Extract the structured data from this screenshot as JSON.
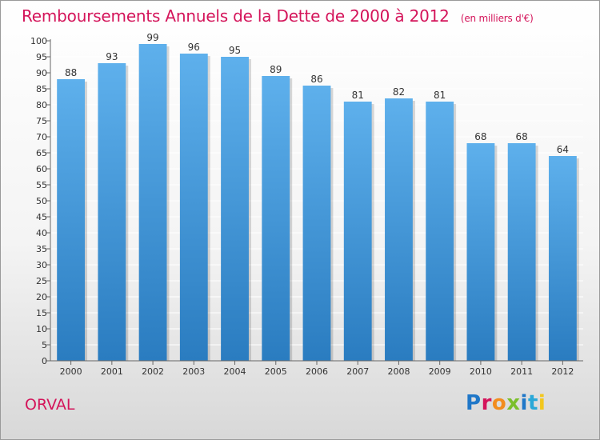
{
  "title": "Remboursements Annuels de la Dette de 2000 à 2012",
  "subtitle": "(en milliers d'€)",
  "footer_label": "ORVAL",
  "logo_text": "Proxiti",
  "colors": {
    "title": "#d4145a",
    "bar_top": "#5eb0ec",
    "bar_bottom": "#2a7cc0",
    "grid": "#ffffff",
    "axis": "#666666"
  },
  "chart_data": {
    "type": "bar",
    "categories": [
      "2000",
      "2001",
      "2002",
      "2003",
      "2004",
      "2005",
      "2006",
      "2007",
      "2008",
      "2009",
      "2010",
      "2011",
      "2012"
    ],
    "values": [
      88,
      93,
      99,
      96,
      95,
      89,
      86,
      81,
      82,
      81,
      68,
      68,
      64
    ],
    "ylim": [
      0,
      100
    ],
    "ytick_step": 5,
    "grid": true,
    "data_labels": true
  }
}
